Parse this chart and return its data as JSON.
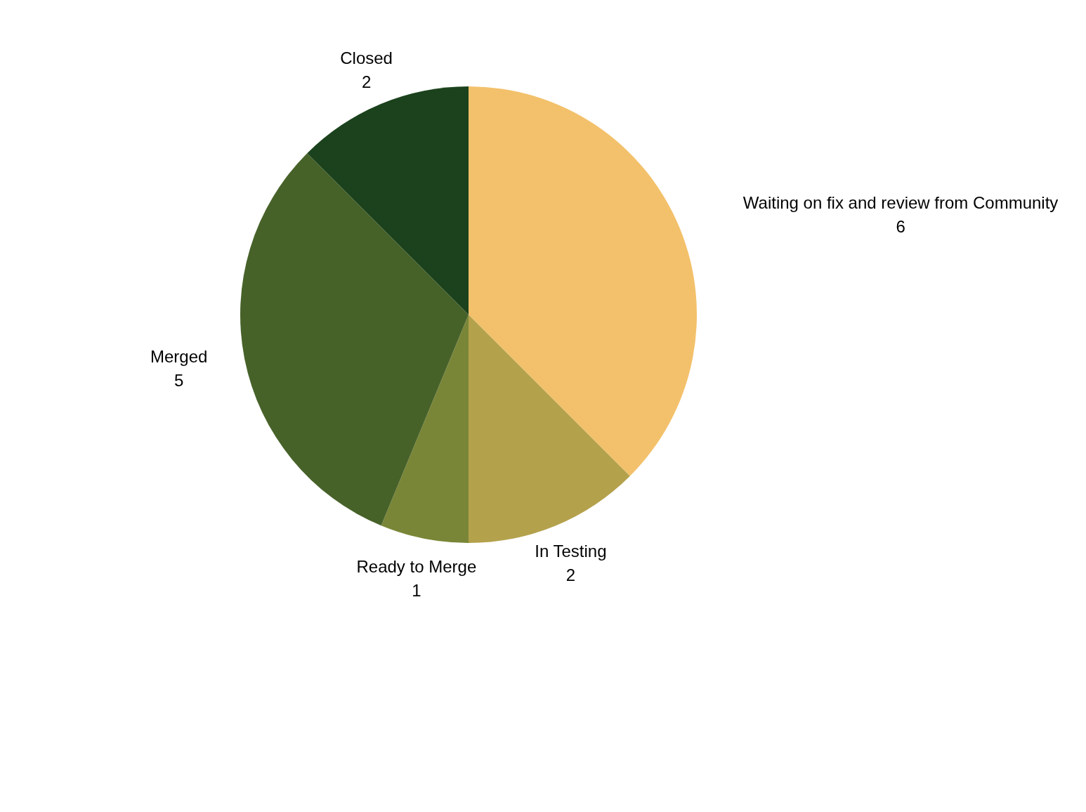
{
  "chart_data": {
    "type": "pie",
    "categories": [
      "Waiting on fix and review from Community",
      "In Testing",
      "Ready to Merge",
      "Merged",
      "Closed"
    ],
    "values": [
      6,
      2,
      1,
      5,
      2
    ],
    "colors": [
      "#f3c16b",
      "#b4a14c",
      "#7a8637",
      "#476229",
      "#1b421c"
    ],
    "data_labels": true
  }
}
